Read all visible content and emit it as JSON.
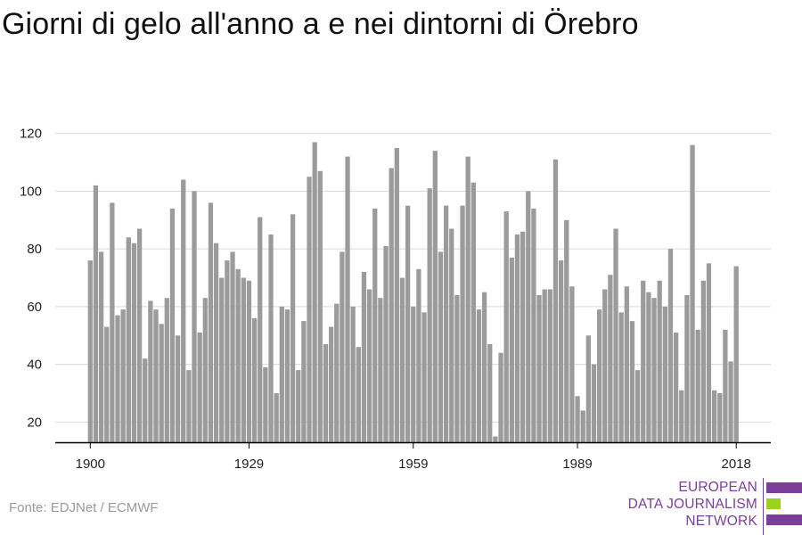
{
  "title": "Giorni di gelo all'anno a e nei dintorni di Örebro",
  "source": "Fonte: EDJNet / ECMWF",
  "logo": {
    "line1": "EUROPEAN",
    "line2": "DATA JOURNALISM",
    "line3": "NETWORK",
    "colors": [
      "#7b3f99",
      "#9bd11f",
      "#7b3f99"
    ]
  },
  "colors": {
    "bar": "#9b9b9b",
    "grid": "#d9d9d9",
    "axis": "#000000"
  },
  "chart_data": {
    "type": "bar",
    "title": "Giorni di gelo all'anno a e nei dintorni di Örebro",
    "xlabel": "",
    "ylabel": "",
    "x_ticks": [
      1900,
      1929,
      1959,
      1989,
      2018
    ],
    "y_ticks": [
      20,
      40,
      60,
      80,
      100,
      120
    ],
    "ylim": [
      13,
      123
    ],
    "grid": true,
    "categories": [
      1900,
      1901,
      1902,
      1903,
      1904,
      1905,
      1906,
      1907,
      1908,
      1909,
      1910,
      1911,
      1912,
      1913,
      1914,
      1915,
      1916,
      1917,
      1918,
      1919,
      1920,
      1921,
      1922,
      1923,
      1924,
      1925,
      1926,
      1927,
      1928,
      1929,
      1930,
      1931,
      1932,
      1933,
      1934,
      1935,
      1936,
      1937,
      1938,
      1939,
      1940,
      1941,
      1942,
      1943,
      1944,
      1945,
      1946,
      1947,
      1948,
      1949,
      1950,
      1951,
      1952,
      1953,
      1954,
      1955,
      1956,
      1957,
      1958,
      1959,
      1960,
      1961,
      1962,
      1963,
      1964,
      1965,
      1966,
      1967,
      1968,
      1969,
      1970,
      1971,
      1972,
      1973,
      1974,
      1975,
      1976,
      1977,
      1978,
      1979,
      1980,
      1981,
      1982,
      1983,
      1984,
      1985,
      1986,
      1987,
      1988,
      1989,
      1990,
      1991,
      1992,
      1993,
      1994,
      1995,
      1996,
      1997,
      1998,
      1999,
      2000,
      2001,
      2002,
      2003,
      2004,
      2005,
      2006,
      2007,
      2008,
      2009,
      2010,
      2011,
      2012,
      2013,
      2014,
      2015,
      2016,
      2017,
      2018
    ],
    "values": [
      76,
      102,
      79,
      53,
      96,
      57,
      59,
      84,
      82,
      87,
      42,
      62,
      59,
      54,
      63,
      94,
      50,
      104,
      38,
      100,
      51,
      63,
      96,
      82,
      70,
      76,
      79,
      73,
      70,
      69,
      56,
      91,
      39,
      85,
      30,
      60,
      59,
      92,
      38,
      55,
      105,
      117,
      107,
      47,
      53,
      61,
      79,
      112,
      60,
      46,
      72,
      66,
      94,
      63,
      81,
      108,
      115,
      70,
      95,
      60,
      73,
      58,
      101,
      114,
      79,
      95,
      87,
      64,
      95,
      112,
      103,
      59,
      65,
      47,
      15,
      44,
      93,
      77,
      85,
      86,
      100,
      94,
      64,
      66,
      66,
      111,
      76,
      90,
      67,
      29,
      24,
      50,
      40,
      59,
      66,
      71,
      87,
      58,
      67,
      55,
      38,
      69,
      65,
      63,
      69,
      60,
      80,
      51,
      31,
      64,
      116,
      52,
      69,
      75,
      31,
      30,
      52,
      41,
      74
    ]
  }
}
